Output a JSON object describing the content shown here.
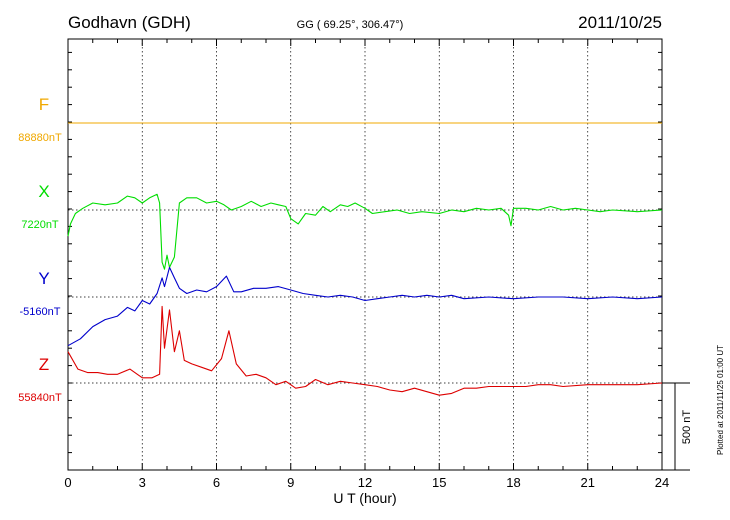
{
  "header": {
    "station": "Godhavn (GDH)",
    "coords": "GG ( 69.25°, 306.47°)",
    "date": "2011/10/25"
  },
  "footer": {
    "plotted": "Plotted at 2011/11/25 01:00 UT"
  },
  "chart_data": {
    "type": "line",
    "xlabel": "U T (hour)",
    "xlim": [
      0,
      24
    ],
    "xticks": [
      "0",
      "3",
      "6",
      "9",
      "12",
      "15",
      "18",
      "21",
      "24"
    ],
    "grid": true,
    "scale_bar": {
      "label": "500 nT",
      "value_nT": 500
    },
    "colors": {
      "F": "#f0a800",
      "X": "#00dd00",
      "Y": "#0000cc",
      "Z": "#dd0000"
    },
    "series": [
      {
        "name": "F",
        "baseline_label": "88880nT",
        "baseline_nT": 88880,
        "points": [
          [
            0,
            0
          ],
          [
            24,
            0
          ]
        ]
      },
      {
        "name": "X",
        "baseline_label": "7220nT",
        "baseline_nT": 7220,
        "points": [
          [
            0,
            -150
          ],
          [
            0.1,
            -80
          ],
          [
            0.3,
            -20
          ],
          [
            0.6,
            10
          ],
          [
            1.0,
            40
          ],
          [
            1.5,
            30
          ],
          [
            2.0,
            40
          ],
          [
            2.4,
            80
          ],
          [
            2.7,
            70
          ],
          [
            3.0,
            40
          ],
          [
            3.3,
            70
          ],
          [
            3.6,
            90
          ],
          [
            3.7,
            40
          ],
          [
            3.8,
            -300
          ],
          [
            3.9,
            -340
          ],
          [
            4.0,
            -260
          ],
          [
            4.1,
            -330
          ],
          [
            4.3,
            -270
          ],
          [
            4.5,
            40
          ],
          [
            4.8,
            70
          ],
          [
            5.2,
            70
          ],
          [
            5.6,
            40
          ],
          [
            6.0,
            50
          ],
          [
            6.3,
            30
          ],
          [
            6.6,
            0
          ],
          [
            7.0,
            20
          ],
          [
            7.4,
            50
          ],
          [
            7.8,
            20
          ],
          [
            8.2,
            40
          ],
          [
            8.5,
            30
          ],
          [
            8.8,
            20
          ],
          [
            9.0,
            -50
          ],
          [
            9.3,
            -80
          ],
          [
            9.6,
            -20
          ],
          [
            10.0,
            -30
          ],
          [
            10.3,
            20
          ],
          [
            10.6,
            -10
          ],
          [
            11.0,
            30
          ],
          [
            11.3,
            20
          ],
          [
            11.6,
            40
          ],
          [
            12.0,
            10
          ],
          [
            12.3,
            -20
          ],
          [
            12.8,
            -10
          ],
          [
            13.3,
            0
          ],
          [
            13.8,
            -20
          ],
          [
            14.3,
            -10
          ],
          [
            15.0,
            -20
          ],
          [
            15.5,
            0
          ],
          [
            16.0,
            -10
          ],
          [
            16.5,
            10
          ],
          [
            17.0,
            0
          ],
          [
            17.5,
            10
          ],
          [
            17.8,
            -30
          ],
          [
            17.9,
            -90
          ],
          [
            18.0,
            10
          ],
          [
            18.5,
            10
          ],
          [
            19.0,
            0
          ],
          [
            19.5,
            20
          ],
          [
            20.0,
            0
          ],
          [
            20.5,
            10
          ],
          [
            21.0,
            0
          ],
          [
            21.5,
            -10
          ],
          [
            22.0,
            0
          ],
          [
            23.0,
            -10
          ],
          [
            24.0,
            0
          ]
        ]
      },
      {
        "name": "Y",
        "baseline_label": "-5160nT",
        "baseline_nT": -5160,
        "points": [
          [
            0,
            -280
          ],
          [
            0.5,
            -240
          ],
          [
            1.0,
            -170
          ],
          [
            1.5,
            -130
          ],
          [
            2.0,
            -110
          ],
          [
            2.4,
            -60
          ],
          [
            2.7,
            -80
          ],
          [
            3.0,
            -20
          ],
          [
            3.3,
            -40
          ],
          [
            3.6,
            20
          ],
          [
            3.8,
            110
          ],
          [
            3.9,
            60
          ],
          [
            4.1,
            170
          ],
          [
            4.3,
            110
          ],
          [
            4.5,
            50
          ],
          [
            4.8,
            20
          ],
          [
            5.2,
            40
          ],
          [
            5.6,
            30
          ],
          [
            6.0,
            60
          ],
          [
            6.4,
            120
          ],
          [
            6.7,
            30
          ],
          [
            7.0,
            30
          ],
          [
            7.5,
            50
          ],
          [
            8.0,
            50
          ],
          [
            8.5,
            60
          ],
          [
            9.0,
            40
          ],
          [
            9.5,
            20
          ],
          [
            10.0,
            10
          ],
          [
            10.5,
            0
          ],
          [
            11.0,
            10
          ],
          [
            11.5,
            0
          ],
          [
            12.0,
            -20
          ],
          [
            12.5,
            -10
          ],
          [
            13.0,
            0
          ],
          [
            13.5,
            10
          ],
          [
            14.0,
            0
          ],
          [
            14.5,
            10
          ],
          [
            15.0,
            0
          ],
          [
            15.5,
            10
          ],
          [
            16.0,
            -10
          ],
          [
            17.0,
            0
          ],
          [
            18.0,
            -10
          ],
          [
            19.0,
            0
          ],
          [
            20.0,
            0
          ],
          [
            21.0,
            -10
          ],
          [
            22.0,
            0
          ],
          [
            23.0,
            -10
          ],
          [
            24.0,
            0
          ]
        ]
      },
      {
        "name": "Z",
        "baseline_label": "55840nT",
        "baseline_nT": 55840,
        "points": [
          [
            0,
            180
          ],
          [
            0.4,
            80
          ],
          [
            0.8,
            60
          ],
          [
            1.2,
            60
          ],
          [
            1.6,
            50
          ],
          [
            2.0,
            50
          ],
          [
            2.5,
            80
          ],
          [
            3.0,
            30
          ],
          [
            3.4,
            30
          ],
          [
            3.7,
            50
          ],
          [
            3.8,
            440
          ],
          [
            3.9,
            200
          ],
          [
            4.1,
            420
          ],
          [
            4.3,
            180
          ],
          [
            4.5,
            300
          ],
          [
            4.7,
            130
          ],
          [
            5.0,
            110
          ],
          [
            5.4,
            90
          ],
          [
            5.8,
            70
          ],
          [
            6.2,
            140
          ],
          [
            6.5,
            300
          ],
          [
            6.8,
            110
          ],
          [
            7.2,
            40
          ],
          [
            7.6,
            50
          ],
          [
            8.0,
            30
          ],
          [
            8.4,
            -10
          ],
          [
            8.8,
            10
          ],
          [
            9.2,
            -30
          ],
          [
            9.6,
            -20
          ],
          [
            10.0,
            20
          ],
          [
            10.5,
            -10
          ],
          [
            11.0,
            10
          ],
          [
            11.5,
            0
          ],
          [
            12.0,
            -10
          ],
          [
            12.5,
            -20
          ],
          [
            13.0,
            -40
          ],
          [
            13.5,
            -50
          ],
          [
            14.0,
            -30
          ],
          [
            14.5,
            -50
          ],
          [
            15.0,
            -70
          ],
          [
            15.5,
            -60
          ],
          [
            16.0,
            -30
          ],
          [
            16.5,
            -30
          ],
          [
            17.0,
            -20
          ],
          [
            17.5,
            -20
          ],
          [
            18.0,
            -20
          ],
          [
            18.5,
            -20
          ],
          [
            19.0,
            -10
          ],
          [
            19.5,
            -10
          ],
          [
            20.0,
            -20
          ],
          [
            21.0,
            -10
          ],
          [
            22.0,
            -10
          ],
          [
            23.0,
            -10
          ],
          [
            24.0,
            0
          ]
        ]
      }
    ]
  }
}
